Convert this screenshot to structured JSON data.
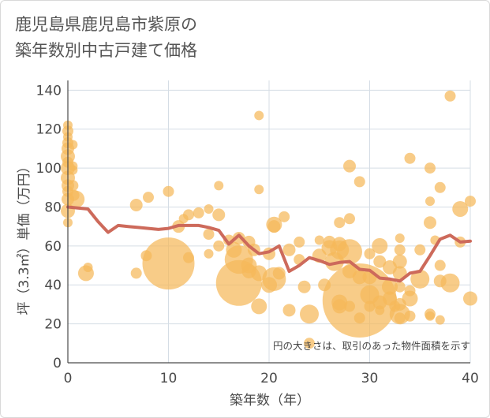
{
  "title": "鹿児島県鹿児島市紫原の\n築年数別中古戸建て価格",
  "chart_data": {
    "type": "scatter",
    "xlabel": "築年数（年）",
    "ylabel": "坪（3.3㎡）単価（万円）",
    "xlim": [
      0,
      40
    ],
    "ylim": [
      0,
      145
    ],
    "xticks": [
      0,
      10,
      20,
      30,
      40
    ],
    "yticks": [
      0,
      20,
      40,
      60,
      80,
      100,
      120,
      140
    ],
    "grid": true,
    "annotation": "円の大きさは、取引のあった物件面積を示す",
    "colors": {
      "bubble": "#f5b85a",
      "line": "#cd6a5b",
      "grid": "#d5dde5"
    },
    "series": [
      {
        "type": "bubble",
        "points": [
          {
            "x": 0,
            "y": 122,
            "s": 6
          },
          {
            "x": 0,
            "y": 119,
            "s": 7
          },
          {
            "x": 0,
            "y": 116,
            "s": 6
          },
          {
            "x": 0,
            "y": 113,
            "s": 7
          },
          {
            "x": 0,
            "y": 110,
            "s": 8
          },
          {
            "x": 0,
            "y": 106,
            "s": 9
          },
          {
            "x": 0,
            "y": 103,
            "s": 7
          },
          {
            "x": 0,
            "y": 100,
            "s": 9
          },
          {
            "x": 0,
            "y": 95,
            "s": 9
          },
          {
            "x": 0,
            "y": 91,
            "s": 8
          },
          {
            "x": 0,
            "y": 88,
            "s": 7
          },
          {
            "x": 0,
            "y": 84,
            "s": 8
          },
          {
            "x": 0,
            "y": 78,
            "s": 9
          },
          {
            "x": 0,
            "y": 72,
            "s": 6
          },
          {
            "x": 0.5,
            "y": 112,
            "s": 6
          },
          {
            "x": 0.5,
            "y": 101,
            "s": 6
          },
          {
            "x": 0.5,
            "y": 99,
            "s": 6
          },
          {
            "x": 0.5,
            "y": 91,
            "s": 7
          },
          {
            "x": 0.8,
            "y": 84,
            "s": 11
          },
          {
            "x": 0.6,
            "y": 86,
            "s": 7
          },
          {
            "x": 1.8,
            "y": 46,
            "s": 10
          },
          {
            "x": 6.8,
            "y": 81,
            "s": 8
          },
          {
            "x": 6.8,
            "y": 46,
            "s": 7
          },
          {
            "x": 7.8,
            "y": 55,
            "s": 7
          },
          {
            "x": 8,
            "y": 85,
            "s": 7
          },
          {
            "x": 10,
            "y": 88,
            "s": 7
          },
          {
            "x": 10,
            "y": 51,
            "s": 33
          },
          {
            "x": 11,
            "y": 70,
            "s": 8
          },
          {
            "x": 11.5,
            "y": 74,
            "s": 6
          },
          {
            "x": 12,
            "y": 76,
            "s": 7
          },
          {
            "x": 12,
            "y": 54,
            "s": 7
          },
          {
            "x": 13,
            "y": 77,
            "s": 7
          },
          {
            "x": 14,
            "y": 79,
            "s": 6
          },
          {
            "x": 14,
            "y": 66,
            "s": 7
          },
          {
            "x": 14,
            "y": 56,
            "s": 6
          },
          {
            "x": 15,
            "y": 91,
            "s": 6
          },
          {
            "x": 15,
            "y": 76,
            "s": 8
          },
          {
            "x": 15,
            "y": 60,
            "s": 7
          },
          {
            "x": 16,
            "y": 63,
            "s": 7
          },
          {
            "x": 16.5,
            "y": 58,
            "s": 10
          },
          {
            "x": 17,
            "y": 64,
            "s": 8
          },
          {
            "x": 17,
            "y": 53,
            "s": 18
          },
          {
            "x": 17,
            "y": 41,
            "s": 29
          },
          {
            "x": 18,
            "y": 62,
            "s": 8
          },
          {
            "x": 18,
            "y": 50,
            "s": 10
          },
          {
            "x": 18,
            "y": 47,
            "s": 9
          },
          {
            "x": 18.5,
            "y": 58,
            "s": 8
          },
          {
            "x": 19,
            "y": 127,
            "s": 6
          },
          {
            "x": 19,
            "y": 89,
            "s": 6
          },
          {
            "x": 19,
            "y": 46,
            "s": 10
          },
          {
            "x": 19,
            "y": 29,
            "s": 10
          },
          {
            "x": 20,
            "y": 56,
            "s": 8
          },
          {
            "x": 20,
            "y": 40,
            "s": 10
          },
          {
            "x": 20.5,
            "y": 71,
            "s": 10
          },
          {
            "x": 20.5,
            "y": 70,
            "s": 8
          },
          {
            "x": 20.5,
            "y": 43,
            "s": 15
          },
          {
            "x": 21,
            "y": 46,
            "s": 8
          },
          {
            "x": 21.5,
            "y": 75,
            "s": 7
          },
          {
            "x": 22,
            "y": 58,
            "s": 8
          },
          {
            "x": 22,
            "y": 27,
            "s": 8
          },
          {
            "x": 23,
            "y": 62,
            "s": 7
          },
          {
            "x": 23,
            "y": 53,
            "s": 7
          },
          {
            "x": 23.5,
            "y": 39,
            "s": 8
          },
          {
            "x": 24,
            "y": 25,
            "s": 12
          },
          {
            "x": 24,
            "y": 10,
            "s": 7
          },
          {
            "x": 25,
            "y": 55,
            "s": 9
          },
          {
            "x": 25.5,
            "y": 40,
            "s": 8
          },
          {
            "x": 25,
            "y": 63,
            "s": 6
          },
          {
            "x": 26,
            "y": 62,
            "s": 8
          },
          {
            "x": 26,
            "y": 59,
            "s": 10
          },
          {
            "x": 26.5,
            "y": 52,
            "s": 12
          },
          {
            "x": 27,
            "y": 72,
            "s": 7
          },
          {
            "x": 27,
            "y": 61,
            "s": 9
          },
          {
            "x": 27,
            "y": 58,
            "s": 12
          },
          {
            "x": 27,
            "y": 31,
            "s": 10
          },
          {
            "x": 27,
            "y": 29,
            "s": 9
          },
          {
            "x": 28,
            "y": 101,
            "s": 8
          },
          {
            "x": 28,
            "y": 74,
            "s": 7
          },
          {
            "x": 28,
            "y": 57,
            "s": 16
          },
          {
            "x": 28,
            "y": 47,
            "s": 9
          },
          {
            "x": 28,
            "y": 29,
            "s": 7
          },
          {
            "x": 29,
            "y": 93,
            "s": 7
          },
          {
            "x": 29,
            "y": 44,
            "s": 9
          },
          {
            "x": 29,
            "y": 32,
            "s": 47
          },
          {
            "x": 29,
            "y": 23,
            "s": 7
          },
          {
            "x": 30,
            "y": 56,
            "s": 7
          },
          {
            "x": 30,
            "y": 44,
            "s": 9
          },
          {
            "x": 30,
            "y": 35,
            "s": 12
          },
          {
            "x": 30,
            "y": 29,
            "s": 7
          },
          {
            "x": 31,
            "y": 60,
            "s": 10
          },
          {
            "x": 31,
            "y": 52,
            "s": 8
          },
          {
            "x": 31,
            "y": 31,
            "s": 9
          },
          {
            "x": 31,
            "y": 27,
            "s": 6
          },
          {
            "x": 32,
            "y": 49,
            "s": 9
          },
          {
            "x": 32,
            "y": 39,
            "s": 10
          },
          {
            "x": 32,
            "y": 33,
            "s": 9
          },
          {
            "x": 32.5,
            "y": 29,
            "s": 7
          },
          {
            "x": 33,
            "y": 64,
            "s": 6
          },
          {
            "x": 33,
            "y": 58,
            "s": 7
          },
          {
            "x": 33,
            "y": 52,
            "s": 9
          },
          {
            "x": 33,
            "y": 46,
            "s": 9
          },
          {
            "x": 33,
            "y": 39,
            "s": 7
          },
          {
            "x": 33,
            "y": 30,
            "s": 8
          },
          {
            "x": 33,
            "y": 25,
            "s": 13
          },
          {
            "x": 33,
            "y": 23,
            "s": 7
          },
          {
            "x": 34,
            "y": 105,
            "s": 7
          },
          {
            "x": 34,
            "y": 37,
            "s": 7
          },
          {
            "x": 34,
            "y": 33,
            "s": 10
          },
          {
            "x": 34,
            "y": 24,
            "s": 7
          },
          {
            "x": 35,
            "y": 58,
            "s": 7
          },
          {
            "x": 35,
            "y": 43,
            "s": 12
          },
          {
            "x": 36,
            "y": 100,
            "s": 7
          },
          {
            "x": 36,
            "y": 83,
            "s": 6
          },
          {
            "x": 36,
            "y": 72,
            "s": 8
          },
          {
            "x": 36,
            "y": 25,
            "s": 7
          },
          {
            "x": 36,
            "y": 24,
            "s": 6
          },
          {
            "x": 37,
            "y": 90,
            "s": 7
          },
          {
            "x": 37,
            "y": 50,
            "s": 7
          },
          {
            "x": 37,
            "y": 42,
            "s": 8
          },
          {
            "x": 37,
            "y": 22,
            "s": 6
          },
          {
            "x": 38,
            "y": 137,
            "s": 7
          },
          {
            "x": 38,
            "y": 41,
            "s": 12
          },
          {
            "x": 39,
            "y": 79,
            "s": 10
          },
          {
            "x": 39,
            "y": 62,
            "s": 7
          },
          {
            "x": 40,
            "y": 83,
            "s": 7
          },
          {
            "x": 40,
            "y": 33,
            "s": 9
          },
          {
            "x": 36.5,
            "y": 63,
            "s": 6
          },
          {
            "x": 2,
            "y": 49,
            "s": 6
          }
        ]
      },
      {
        "type": "line",
        "x": [
          0,
          1,
          2,
          3,
          4,
          5,
          6,
          7,
          8,
          9,
          10,
          11,
          12,
          13,
          14,
          15,
          16,
          17,
          18,
          19,
          20,
          21,
          22,
          23,
          24,
          25,
          26,
          27,
          28,
          29,
          30,
          31,
          32,
          33,
          34,
          35,
          36,
          37,
          38,
          39,
          40
        ],
        "values": [
          80,
          79.5,
          79,
          72.5,
          67,
          70.5,
          70,
          69.5,
          69,
          68.5,
          69,
          70.5,
          70.5,
          70.5,
          69.5,
          68,
          61,
          65.5,
          60,
          56,
          57,
          60,
          47,
          50,
          54,
          52.5,
          50.5,
          51.5,
          52,
          48,
          47.5,
          43.5,
          43,
          42,
          46,
          47,
          55,
          63.5,
          65.5,
          62,
          62.5
        ]
      }
    ]
  }
}
